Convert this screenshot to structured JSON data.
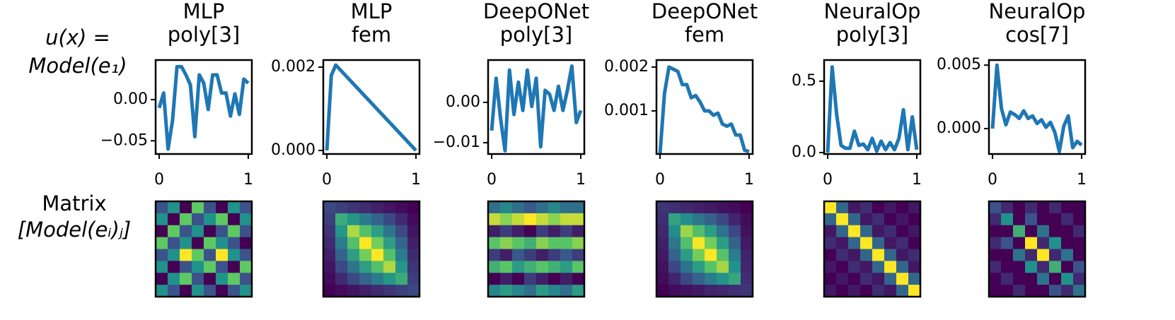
{
  "row_labels": [
    [
      "u(x) =",
      "Model(e₁)"
    ],
    [
      "Matrix",
      "[Model(eᵢ)ⱼ]"
    ]
  ],
  "chart_data": [
    {
      "type": "line",
      "title": [
        "MLP",
        "poly[3]"
      ],
      "color": "#1f77b4",
      "x": [
        0,
        0.05,
        0.1,
        0.15,
        0.2,
        0.25,
        0.3,
        0.35,
        0.4,
        0.45,
        0.5,
        0.55,
        0.6,
        0.65,
        0.7,
        0.75,
        0.8,
        0.85,
        0.9,
        0.95,
        1
      ],
      "values": [
        -0.01,
        0.008,
        -0.06,
        -0.025,
        0.04,
        0.04,
        0.03,
        0.018,
        -0.045,
        0.03,
        0.02,
        -0.012,
        0.03,
        0.03,
        0.008,
        0.008,
        -0.02,
        0.007,
        -0.018,
        0.025,
        0.02
      ],
      "xlim": [
        -0.04,
        1.04
      ],
      "xticks": [
        0,
        1
      ],
      "ylim": [
        -0.066,
        0.048
      ],
      "yticks": [
        {
          "value": 0,
          "label": "0.00"
        },
        {
          "value": -0.05,
          "label": "−0.05"
        }
      ]
    },
    {
      "type": "line",
      "title": [
        "MLP",
        "fem"
      ],
      "color": "#1f77b4",
      "x": [
        0,
        0.05,
        0.1,
        1
      ],
      "values": [
        0,
        0.0018,
        0.00205,
        0
      ],
      "xlim": [
        -0.04,
        1.04
      ],
      "xticks": [
        0,
        1
      ],
      "ylim": [
        -8.5e-05,
        0.00217
      ],
      "yticks": [
        {
          "value": 0.002,
          "label": "0.002"
        },
        {
          "value": 0,
          "label": "0.000"
        }
      ]
    },
    {
      "type": "line",
      "title": [
        "DeepONet",
        "poly[3]"
      ],
      "color": "#1f77b4",
      "x": [
        0,
        0.05,
        0.1,
        0.15,
        0.2,
        0.25,
        0.3,
        0.35,
        0.4,
        0.45,
        0.5,
        0.55,
        0.6,
        0.65,
        0.7,
        0.75,
        0.8,
        0.85,
        0.9,
        0.95,
        1
      ],
      "values": [
        -0.007,
        0.006,
        -0.004,
        -0.012,
        0.008,
        -0.003,
        0.005,
        -0.002,
        0.008,
        -0.001,
        0.006,
        -0.011,
        0.003,
        0.002,
        -0.002,
        0.004,
        -0.002,
        0.003,
        0.009,
        -0.005,
        -0.002
      ],
      "xlim": [
        -0.04,
        1.04
      ],
      "xticks": [
        0,
        1
      ],
      "ylim": [
        -0.0128,
        0.0105
      ],
      "yticks": [
        {
          "value": 0,
          "label": "0.00"
        },
        {
          "value": -0.01,
          "label": "−0.01"
        }
      ]
    },
    {
      "type": "line",
      "title": [
        "DeepONet",
        "fem"
      ],
      "color": "#1f77b4",
      "x": [
        0,
        0.05,
        0.1,
        0.15,
        0.2,
        0.25,
        0.3,
        0.35,
        0.4,
        0.45,
        0.5,
        0.55,
        0.6,
        0.65,
        0.7,
        0.75,
        0.8,
        0.85,
        0.9,
        0.95,
        1
      ],
      "values": [
        3e-05,
        0.0014,
        0.002,
        0.00195,
        0.0019,
        0.0016,
        0.0016,
        0.0013,
        0.00135,
        0.0012,
        0.001,
        0.001,
        0.0009,
        0.00095,
        0.0007,
        0.00065,
        0.0007,
        0.00045,
        0.00045,
        0.0001,
        7e-05
      ],
      "xlim": [
        -0.04,
        1.04
      ],
      "xticks": [
        0,
        1
      ],
      "ylim": [
        1.6e-05,
        0.00216
      ],
      "yticks": [
        {
          "value": 0.002,
          "label": "0.002"
        },
        {
          "value": 0.001,
          "label": "0.001"
        }
      ]
    },
    {
      "type": "line",
      "title": [
        "NeuralOp",
        "poly[3]"
      ],
      "color": "#1f77b4",
      "x": [
        0,
        0.05,
        0.1,
        0.15,
        0.2,
        0.25,
        0.3,
        0.35,
        0.4,
        0.45,
        0.5,
        0.55,
        0.6,
        0.65,
        0.7,
        0.75,
        0.8,
        0.85,
        0.9,
        0.95,
        1
      ],
      "values": [
        0,
        0.6,
        0.27,
        0.05,
        0.03,
        0.03,
        0.15,
        0.05,
        0.06,
        0.02,
        0.1,
        0.01,
        0.08,
        0.02,
        0.07,
        0.02,
        0.1,
        0.3,
        0.02,
        0.25,
        0.02
      ],
      "xlim": [
        -0.04,
        1.04
      ],
      "xticks": [
        0,
        1
      ],
      "ylim": [
        -0.01,
        0.648
      ],
      "yticks": [
        0.5,
        {
          "value": 0,
          "label": "0.0"
        }
      ]
    },
    {
      "type": "line",
      "title": [
        "NeuralOp",
        "cos[7]"
      ],
      "color": "#1f77b4",
      "x": [
        0,
        0.05,
        0.1,
        0.15,
        0.2,
        0.25,
        0.3,
        0.35,
        0.4,
        0.45,
        0.5,
        0.55,
        0.6,
        0.65,
        0.7,
        0.75,
        0.8,
        0.85,
        0.9,
        0.95,
        1
      ],
      "values": [
        0,
        0.005,
        0.0016,
        0.0003,
        0.0013,
        0.0011,
        0.0008,
        0.0014,
        0.0008,
        0.001,
        0.0004,
        0.0007,
        0.0001,
        0.0005,
        -0.0003,
        -0.0018,
        0.0002,
        0.001,
        -0.0015,
        -0.001,
        -0.0013
      ],
      "xlim": [
        -0.04,
        1.04
      ],
      "xticks": [
        0,
        1
      ],
      "ylim": [
        -0.002,
        0.0054
      ],
      "yticks": [
        0.005,
        {
          "value": 0,
          "label": "0.000"
        }
      ]
    },
    {
      "type": "heatmap",
      "colormap": "viridis",
      "values": [
        [
          0.5,
          0.6,
          0.4,
          0.7,
          0.5,
          0.4,
          0.6,
          0.5
        ],
        [
          0.6,
          0.4,
          0.7,
          0.5,
          0.6,
          0.7,
          0.4,
          0.6
        ],
        [
          0.4,
          0.7,
          0.5,
          0.6,
          0.4,
          0.5,
          0.7,
          0.5
        ],
        [
          0.7,
          0.5,
          0.6,
          0.4,
          0.7,
          0.6,
          0.5,
          0.4
        ],
        [
          0.5,
          0.6,
          0.8,
          0.7,
          0.5,
          0.8,
          0.6,
          0.5
        ],
        [
          0.6,
          0.4,
          0.5,
          0.6,
          0.7,
          0.5,
          0.4,
          0.7
        ],
        [
          0.4,
          0.6,
          0.7,
          0.5,
          0.4,
          0.6,
          0.7,
          0.5
        ],
        [
          0.6,
          0.5,
          0.4,
          0.6,
          0.5,
          0.4,
          0.5,
          0.6
        ]
      ]
    },
    {
      "type": "heatmap",
      "colormap": "viridis",
      "values": [
        [
          0.23,
          0.2,
          0.17,
          0.14,
          0.11,
          0.08,
          0.05,
          0.02
        ],
        [
          0.2,
          0.61,
          0.52,
          0.42,
          0.33,
          0.23,
          0.14,
          0.05
        ],
        [
          0.17,
          0.52,
          0.86,
          0.7,
          0.55,
          0.39,
          0.23,
          0.08
        ],
        [
          0.14,
          0.42,
          0.7,
          0.98,
          0.77,
          0.55,
          0.33,
          0.11
        ],
        [
          0.11,
          0.33,
          0.55,
          0.77,
          0.98,
          0.7,
          0.42,
          0.14
        ],
        [
          0.08,
          0.23,
          0.39,
          0.55,
          0.7,
          0.86,
          0.52,
          0.17
        ],
        [
          0.05,
          0.14,
          0.23,
          0.33,
          0.42,
          0.52,
          0.61,
          0.2
        ],
        [
          0.02,
          0.05,
          0.08,
          0.11,
          0.14,
          0.17,
          0.2,
          0.23
        ]
      ]
    },
    {
      "type": "heatmap",
      "colormap": "viridis",
      "values": [
        [
          0.4,
          0.45,
          0.4,
          0.35,
          0.4,
          0.45,
          0.4,
          0.4
        ],
        [
          0.7,
          0.65,
          0.7,
          0.75,
          0.7,
          0.65,
          0.7,
          0.7
        ],
        [
          0.25,
          0.3,
          0.25,
          0.2,
          0.3,
          0.25,
          0.3,
          0.25
        ],
        [
          0.6,
          0.65,
          0.6,
          0.55,
          0.65,
          0.6,
          0.6,
          0.65
        ],
        [
          0.3,
          0.25,
          0.35,
          0.3,
          0.25,
          0.3,
          0.35,
          0.3
        ],
        [
          0.55,
          0.6,
          0.5,
          0.55,
          0.6,
          0.55,
          0.5,
          0.6
        ],
        [
          0.2,
          0.25,
          0.2,
          0.3,
          0.25,
          0.2,
          0.25,
          0.2
        ],
        [
          0.45,
          0.5,
          0.45,
          0.4,
          0.5,
          0.45,
          0.4,
          0.5
        ]
      ]
    },
    {
      "type": "heatmap",
      "colormap": "viridis",
      "values": [
        [
          0.2,
          0.18,
          0.16,
          0.14,
          0.12,
          0.1,
          0.08,
          0.05
        ],
        [
          0.18,
          0.58,
          0.5,
          0.42,
          0.34,
          0.25,
          0.15,
          0.08
        ],
        [
          0.16,
          0.5,
          0.84,
          0.7,
          0.56,
          0.4,
          0.25,
          0.1
        ],
        [
          0.14,
          0.42,
          0.7,
          0.97,
          0.78,
          0.56,
          0.34,
          0.12
        ],
        [
          0.12,
          0.34,
          0.56,
          0.78,
          0.98,
          0.72,
          0.44,
          0.15
        ],
        [
          0.1,
          0.25,
          0.4,
          0.56,
          0.72,
          0.85,
          0.52,
          0.16
        ],
        [
          0.08,
          0.15,
          0.25,
          0.34,
          0.44,
          0.52,
          0.6,
          0.18
        ],
        [
          0.05,
          0.08,
          0.1,
          0.12,
          0.15,
          0.16,
          0.18,
          0.2
        ]
      ]
    },
    {
      "type": "heatmap",
      "colormap": "viridis",
      "values": [
        [
          0.9,
          0.4,
          0.2,
          0.25,
          0.15,
          0.2,
          0.15,
          0.2
        ],
        [
          0.4,
          0.9,
          0.4,
          0.2,
          0.25,
          0.15,
          0.2,
          0.15
        ],
        [
          0.2,
          0.4,
          0.9,
          0.4,
          0.2,
          0.25,
          0.15,
          0.2
        ],
        [
          0.25,
          0.2,
          0.4,
          0.9,
          0.4,
          0.2,
          0.25,
          0.15
        ],
        [
          0.15,
          0.25,
          0.2,
          0.4,
          0.9,
          0.4,
          0.2,
          0.25
        ],
        [
          0.2,
          0.15,
          0.25,
          0.2,
          0.4,
          0.9,
          0.4,
          0.2
        ],
        [
          0.15,
          0.2,
          0.15,
          0.25,
          0.2,
          0.4,
          0.9,
          0.4
        ],
        [
          0.2,
          0.15,
          0.2,
          0.15,
          0.25,
          0.2,
          0.4,
          0.9
        ]
      ]
    },
    {
      "type": "heatmap",
      "colormap": "viridis",
      "values": [
        [
          0.4,
          0.35,
          0.3,
          0.35,
          0.3,
          0.35,
          0.3,
          0.3
        ],
        [
          0.35,
          0.5,
          0.3,
          0.4,
          0.3,
          0.3,
          0.35,
          0.3
        ],
        [
          0.3,
          0.3,
          0.55,
          0.3,
          0.45,
          0.3,
          0.3,
          0.35
        ],
        [
          0.35,
          0.4,
          0.3,
          0.7,
          0.35,
          0.5,
          0.3,
          0.3
        ],
        [
          0.3,
          0.3,
          0.45,
          0.35,
          0.7,
          0.35,
          0.45,
          0.3
        ],
        [
          0.35,
          0.3,
          0.3,
          0.5,
          0.35,
          0.55,
          0.3,
          0.4
        ],
        [
          0.3,
          0.35,
          0.3,
          0.3,
          0.45,
          0.3,
          0.5,
          0.35
        ],
        [
          0.3,
          0.3,
          0.35,
          0.3,
          0.3,
          0.4,
          0.35,
          0.45
        ]
      ]
    }
  ]
}
